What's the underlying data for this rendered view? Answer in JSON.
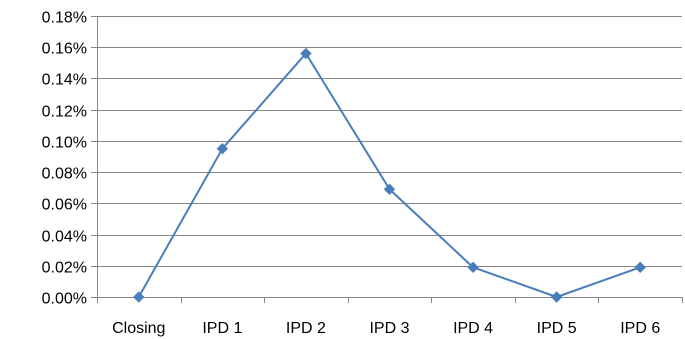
{
  "chart_data": {
    "type": "line",
    "categories": [
      "Closing",
      "IPD 1",
      "IPD 2",
      "IPD 3",
      "IPD 4",
      "IPD 5",
      "IPD 6"
    ],
    "series": [
      {
        "values": [
          0.0,
          0.095,
          0.156,
          0.069,
          0.019,
          0.0,
          0.019
        ],
        "color": "#4A7EBB",
        "marker": "diamond"
      }
    ],
    "y_ticks": [
      "0.00%",
      "0.02%",
      "0.04%",
      "0.06%",
      "0.08%",
      "0.10%",
      "0.12%",
      "0.14%",
      "0.16%",
      "0.18%"
    ],
    "ylim": [
      0,
      0.18
    ],
    "y_unit": "%",
    "grid": true,
    "gridline_color": "#868686",
    "legend": "none",
    "title": "",
    "xlabel": "",
    "ylabel": ""
  }
}
